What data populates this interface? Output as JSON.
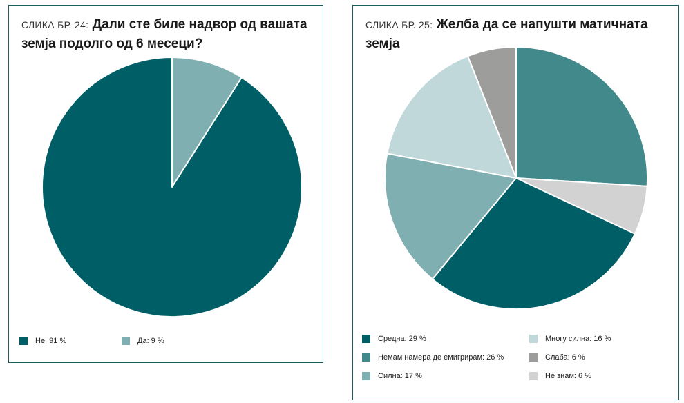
{
  "chart_data": [
    {
      "type": "pie",
      "title_prefix": "СЛИКА БР. 24:",
      "title": "Дали сте биле надвор од вашата земја подолго од 6 месеци?",
      "slices": [
        {
          "label": "Да",
          "value": 9,
          "color": "#80afb2"
        },
        {
          "label": "Не",
          "value": 91,
          "color": "#005f66"
        }
      ],
      "legend": [
        {
          "text": "Не: 91 %",
          "color": "#005f66"
        },
        {
          "text": "Да: 9 %",
          "color": "#80afb2"
        }
      ],
      "legend_position": "bottom"
    },
    {
      "type": "pie",
      "title_prefix": "СЛИКА БР. 25:",
      "title": "Желба да се напушти матичната земја",
      "slices": [
        {
          "label": "Немам намера де емигрирам",
          "value": 26,
          "color": "#42898c"
        },
        {
          "label": "Не знам",
          "value": 6,
          "color": "#d2d2d2"
        },
        {
          "label": "Средна",
          "value": 29,
          "color": "#005f66"
        },
        {
          "label": "Силна",
          "value": 17,
          "color": "#80afb2"
        },
        {
          "label": "Многу силна",
          "value": 16,
          "color": "#c0d8da"
        },
        {
          "label": "Слаба",
          "value": 6,
          "color": "#9d9d9b"
        }
      ],
      "legend": [
        {
          "text": "Средна: 29 %",
          "color": "#005f66"
        },
        {
          "text": "Немам намера де емигрирам: 26 %",
          "color": "#42898c"
        },
        {
          "text": "Силна: 17 %",
          "color": "#80afb2"
        },
        {
          "text": "Многу силна: 16 %",
          "color": "#c0d8da"
        },
        {
          "text": "Слаба: 6 %",
          "color": "#9d9d9b"
        },
        {
          "text": "Не знам: 6 %",
          "color": "#d2d2d2"
        }
      ],
      "legend_position": "bottom"
    }
  ]
}
